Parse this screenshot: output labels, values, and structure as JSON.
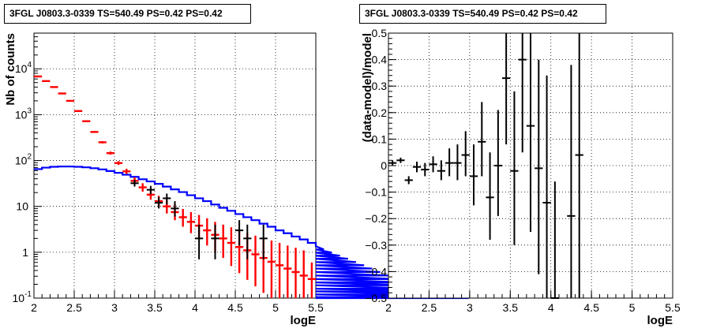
{
  "chart_data": [
    {
      "type": "histogram",
      "title": "3FGL J0803.3-0339 TS=540.49 PS=0.42 PS=0.42",
      "xlabel": "logE",
      "ylabel": "Nb of counts",
      "xlim": [
        2,
        5.5
      ],
      "ylim": [
        0.1,
        60000
      ],
      "yscale": "log",
      "grid": true,
      "x_ticks": [
        "2",
        "2.5",
        "3",
        "3.5",
        "4",
        "4.5",
        "5",
        "5.5"
      ],
      "y_ticks": [
        {
          "value": 0.1,
          "label": "10",
          "exp": "-1"
        },
        {
          "value": 1,
          "label": "1",
          "exp": ""
        },
        {
          "value": 10,
          "label": "10",
          "exp": ""
        },
        {
          "value": 100,
          "label": "10",
          "exp": "2"
        },
        {
          "value": 1000,
          "label": "10",
          "exp": "3"
        },
        {
          "value": 10000,
          "label": "10",
          "exp": "4"
        }
      ],
      "bin_width": 0.1,
      "model_line": {
        "color": "#0000ff",
        "x_start": 2.0,
        "values": [
          65,
          70,
          73,
          74,
          74,
          73,
          71,
          68,
          64,
          59,
          54,
          49,
          44,
          39,
          35,
          31,
          27,
          23.5,
          20.5,
          17.5,
          15,
          13,
          11,
          9.3,
          8.0,
          6.8,
          5.8,
          5.0,
          4.2,
          3.6,
          3.0,
          2.6,
          2.2,
          1.9,
          1.6,
          1.35,
          1.15,
          0.98,
          0.84,
          0.72,
          0.61,
          0.52,
          0.44,
          0.37,
          0.31,
          0.26,
          0.22,
          0.19,
          0.16,
          0.14,
          0.12,
          0.105,
          0.09,
          0.08,
          0.07
        ]
      },
      "model_points": {
        "color": "#ff0000",
        "points": [
          {
            "x": 2.05,
            "y": 6800,
            "lo": 6600,
            "hi": 7000
          },
          {
            "x": 2.15,
            "y": 5400,
            "lo": 5250,
            "hi": 5550
          },
          {
            "x": 2.25,
            "y": 4000,
            "lo": 3880,
            "hi": 4120
          },
          {
            "x": 2.35,
            "y": 2900,
            "lo": 2810,
            "hi": 2990
          },
          {
            "x": 2.45,
            "y": 2000,
            "lo": 1930,
            "hi": 2070
          },
          {
            "x": 2.55,
            "y": 1200,
            "lo": 1150,
            "hi": 1250
          },
          {
            "x": 2.65,
            "y": 720,
            "lo": 690,
            "hi": 750
          },
          {
            "x": 2.75,
            "y": 420,
            "lo": 400,
            "hi": 440
          },
          {
            "x": 2.85,
            "y": 250,
            "lo": 235,
            "hi": 265
          },
          {
            "x": 2.95,
            "y": 145,
            "lo": 134,
            "hi": 157
          },
          {
            "x": 3.05,
            "y": 88,
            "lo": 80,
            "hi": 97
          },
          {
            "x": 3.15,
            "y": 58,
            "lo": 51,
            "hi": 66
          },
          {
            "x": 3.25,
            "y": 36,
            "lo": 30,
            "hi": 43
          },
          {
            "x": 3.35,
            "y": 26,
            "lo": 21,
            "hi": 32
          },
          {
            "x": 3.45,
            "y": 18,
            "lo": 14,
            "hi": 23
          },
          {
            "x": 3.55,
            "y": 13,
            "lo": 9.5,
            "hi": 17
          },
          {
            "x": 3.65,
            "y": 10,
            "lo": 7,
            "hi": 14
          },
          {
            "x": 3.75,
            "y": 7.5,
            "lo": 5,
            "hi": 11
          },
          {
            "x": 3.85,
            "y": 5.8,
            "lo": 3.6,
            "hi": 8.8
          },
          {
            "x": 3.95,
            "y": 4.6,
            "lo": 2.6,
            "hi": 7.5
          },
          {
            "x": 4.05,
            "y": 3.8,
            "lo": 2.0,
            "hi": 6.5
          },
          {
            "x": 4.15,
            "y": 3.0,
            "lo": 1.4,
            "hi": 5.5
          },
          {
            "x": 4.25,
            "y": 2.4,
            "lo": 1.0,
            "hi": 4.6
          },
          {
            "x": 4.35,
            "y": 2.0,
            "lo": 0.75,
            "hi": 4.0
          },
          {
            "x": 4.45,
            "y": 1.6,
            "lo": 0.5,
            "hi": 3.5
          },
          {
            "x": 4.55,
            "y": 1.3,
            "lo": 0.35,
            "hi": 3.0
          },
          {
            "x": 4.65,
            "y": 1.1,
            "lo": 0.25,
            "hi": 2.6
          },
          {
            "x": 4.75,
            "y": 0.9,
            "lo": 0.18,
            "hi": 2.3
          },
          {
            "x": 4.85,
            "y": 0.75,
            "lo": 0.13,
            "hi": 2.0
          },
          {
            "x": 4.95,
            "y": 0.62,
            "lo": 0.1,
            "hi": 1.8
          },
          {
            "x": 5.05,
            "y": 0.52,
            "lo": 0.1,
            "hi": 1.6
          },
          {
            "x": 5.15,
            "y": 0.44,
            "lo": 0.1,
            "hi": 1.4
          },
          {
            "x": 5.25,
            "y": 0.37,
            "lo": 0.1,
            "hi": 1.25
          },
          {
            "x": 5.35,
            "y": 0.31,
            "lo": 0.1,
            "hi": 1.1
          },
          {
            "x": 5.45,
            "y": 0.26,
            "lo": 0.1,
            "hi": 0.6
          }
        ]
      },
      "data_points": {
        "color": "#000000",
        "points": [
          {
            "x": 3.25,
            "y": 32,
            "lo": 27,
            "hi": 38
          },
          {
            "x": 3.45,
            "y": 23,
            "lo": 18.5,
            "hi": 28
          },
          {
            "x": 3.55,
            "y": 12,
            "lo": 9,
            "hi": 16
          },
          {
            "x": 3.65,
            "y": 15,
            "lo": 11,
            "hi": 19
          },
          {
            "x": 3.75,
            "y": 9,
            "lo": 6,
            "hi": 13
          },
          {
            "x": 4.05,
            "y": 2,
            "lo": 0.7,
            "hi": 4
          },
          {
            "x": 4.25,
            "y": 2,
            "lo": 0.7,
            "hi": 4
          },
          {
            "x": 4.55,
            "y": 3,
            "lo": 1.4,
            "hi": 5
          },
          {
            "x": 4.65,
            "y": 2,
            "lo": 0.7,
            "hi": 4
          },
          {
            "x": 4.85,
            "y": 2,
            "lo": 0.7,
            "hi": 4
          }
        ]
      }
    },
    {
      "type": "scatter",
      "title": "3FGL J0803.3-0339 TS=540.49 PS=0.42 PS=0.42",
      "xlabel": "logE",
      "ylabel": "(data-model)/model",
      "xlim": [
        2,
        5.5
      ],
      "ylim": [
        -0.5,
        0.5
      ],
      "grid": true,
      "x_ticks": [
        "2",
        "2.5",
        "3",
        "3.5",
        "4",
        "4.5",
        "5",
        "5.5"
      ],
      "y_ticks": [
        "−0.5",
        "−0.4",
        "−0.3",
        "−0.2",
        "−0.1",
        "0",
        "0.1",
        "0.2",
        "0.3",
        "0.4",
        "0.5"
      ],
      "bin_width": 0.1,
      "points": [
        {
          "x": 2.05,
          "y": 0.01,
          "lo": 0.0,
          "hi": 0.02
        },
        {
          "x": 2.15,
          "y": 0.02,
          "lo": 0.01,
          "hi": 0.03
        },
        {
          "x": 2.25,
          "y": -0.055,
          "lo": -0.07,
          "hi": -0.04
        },
        {
          "x": 2.35,
          "y": -0.005,
          "lo": -0.025,
          "hi": 0.015
        },
        {
          "x": 2.45,
          "y": -0.015,
          "lo": -0.04,
          "hi": 0.01
        },
        {
          "x": 2.55,
          "y": 0.005,
          "lo": -0.025,
          "hi": 0.035
        },
        {
          "x": 2.65,
          "y": -0.02,
          "lo": -0.055,
          "hi": 0.02
        },
        {
          "x": 2.75,
          "y": 0.01,
          "lo": -0.04,
          "hi": 0.065
        },
        {
          "x": 2.85,
          "y": 0.01,
          "lo": -0.055,
          "hi": 0.08
        },
        {
          "x": 2.95,
          "y": 0.04,
          "lo": -0.04,
          "hi": 0.13
        },
        {
          "x": 3.05,
          "y": -0.04,
          "lo": -0.15,
          "hi": 0.08
        },
        {
          "x": 3.15,
          "y": 0.09,
          "lo": -0.04,
          "hi": 0.24
        },
        {
          "x": 3.25,
          "y": -0.12,
          "lo": -0.28,
          "hi": 0.05
        },
        {
          "x": 3.35,
          "y": 0.0,
          "lo": -0.19,
          "hi": 0.21
        },
        {
          "x": 3.45,
          "y": 0.33,
          "lo": 0.08,
          "hi": 0.6
        },
        {
          "x": 3.55,
          "y": -0.02,
          "lo": -0.3,
          "hi": 0.28
        },
        {
          "x": 3.65,
          "y": 0.4,
          "lo": 0.05,
          "hi": 0.8
        },
        {
          "x": 3.75,
          "y": 0.15,
          "lo": -0.25,
          "hi": 0.6
        },
        {
          "x": 3.85,
          "y": -0.01,
          "lo": -0.41,
          "hi": 0.4
        },
        {
          "x": 3.95,
          "y": -0.14,
          "lo": -0.5,
          "hi": 0.34
        },
        {
          "x": 4.05,
          "y": -0.5,
          "lo": -0.6,
          "hi": -0.06
        },
        {
          "x": 4.35,
          "y": 0.04,
          "lo": -0.5,
          "hi": 0.6
        },
        {
          "x": 4.25,
          "y": -0.19,
          "lo": -0.6,
          "hi": 0.38
        }
      ]
    }
  ]
}
